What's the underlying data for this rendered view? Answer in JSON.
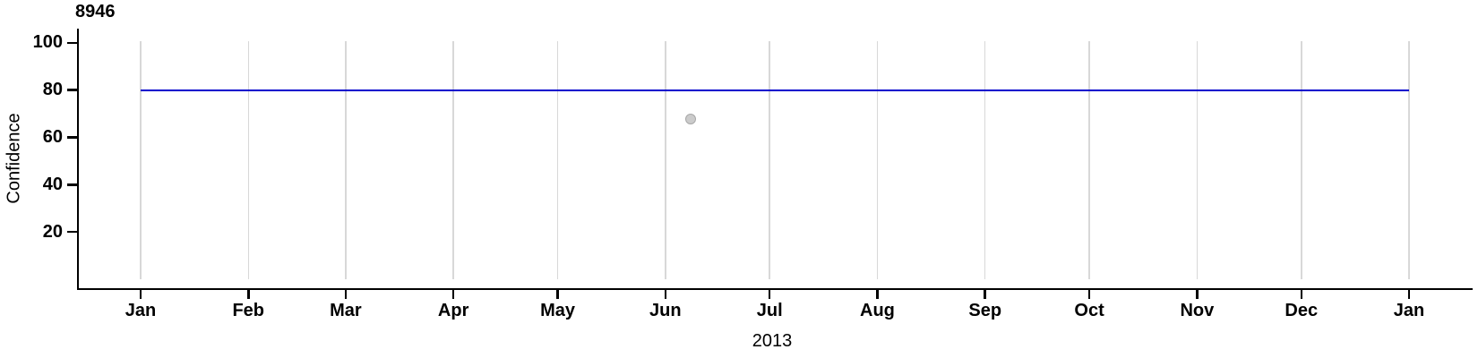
{
  "chart_data": {
    "type": "scatter",
    "title": "8946",
    "xlabel": "2013",
    "ylabel": "Confidence",
    "x_axis": {
      "start": "2013-01-01",
      "end": "2014-01-01",
      "tick_labels": [
        "Jan",
        "Feb",
        "Mar",
        "Apr",
        "May",
        "Jun",
        "Jul",
        "Aug",
        "Sep",
        "Oct",
        "Nov",
        "Dec",
        "Jan"
      ],
      "tick_day_offsets": [
        0,
        31,
        59,
        90,
        120,
        151,
        181,
        212,
        243,
        273,
        304,
        334,
        365
      ],
      "grid": true
    },
    "y_axis": {
      "ticks": [
        100,
        80,
        60,
        40,
        20
      ],
      "range": [
        0,
        101
      ],
      "grid": false
    },
    "reference_line": {
      "value": 80,
      "span_day_offsets": [
        0,
        365
      ],
      "color": "#0000CD"
    },
    "points": [
      {
        "date": "2013-06-08",
        "day_offset": 158.3,
        "value": 67.6
      }
    ],
    "colors": {
      "reference_line": "#0000CD",
      "gridline": "#D8D8D8",
      "axis": "#000000",
      "point_fill": "#CBCBCB",
      "point_stroke": "#A8A8A8",
      "text": "#000000"
    },
    "legend": null
  }
}
